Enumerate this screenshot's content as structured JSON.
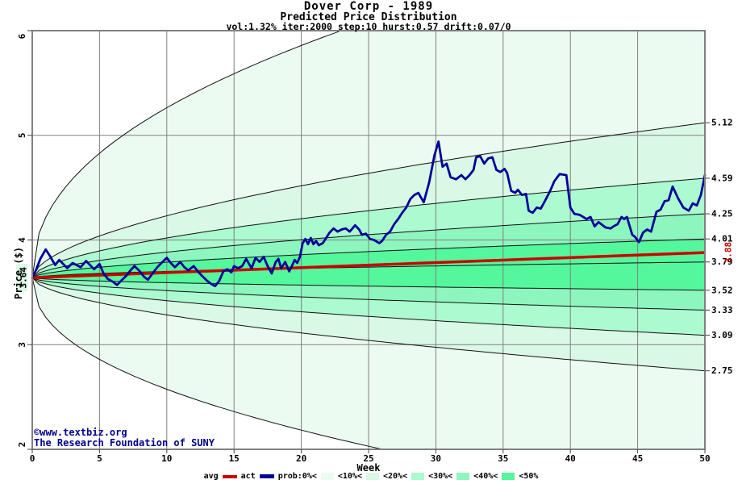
{
  "header": {
    "title": "Dover Corp - 1989",
    "subtitle": "Predicted Price Distribution",
    "params": "vol:1.32% iter:2000 step:10 hurst:0.57 drift:0.07/0"
  },
  "axes": {
    "x": {
      "label": "Week",
      "ticks": [
        0,
        5,
        10,
        15,
        20,
        25,
        30,
        35,
        40,
        45,
        50
      ],
      "min": 0,
      "max": 50
    },
    "y": {
      "label": "Price ($)",
      "ticks": [
        2,
        3,
        4,
        5,
        6
      ],
      "min": 2,
      "max": 6,
      "start_label": "3.64"
    },
    "y_right": {
      "labels": [
        "5.12",
        "4.59",
        "4.25",
        "4.01",
        "3.79",
        "3.52",
        "3.33",
        "3.09",
        "2.75"
      ],
      "avg_label": "3.88"
    }
  },
  "footer": {
    "copyright": "©www.textbiz.org",
    "org": "The Research Foundation of SUNY"
  },
  "legend": {
    "avg_label": "avg",
    "act_label": "act",
    "band_labels": [
      "prob:0%<",
      "<10%<",
      "<20%<",
      "<30%<",
      "<40%<",
      "<50%"
    ]
  },
  "colors": {
    "band_0_10": "#ecfbf1",
    "band_10_20": "#d9f8e5",
    "band_20_30": "#abfad0",
    "band_30_40": "#8df6bf",
    "band_40_50": "#55f79c",
    "avg_line": "#cc0000",
    "act_line": "#000099",
    "grid": "#808080",
    "border": "#808080",
    "boundary": "#111111",
    "footer_text": "#00008b",
    "start_label_bg": "#d9f8e5"
  },
  "chart_data": {
    "type": "area",
    "title": "Dover Corp - 1989",
    "subtitle": "Predicted Price Distribution",
    "annotation": "vol:1.32% iter:2000 step:10 hurst:0.57 drift:0.07/0",
    "xlabel": "Week",
    "ylabel": "Price ($)",
    "xlim": [
      0,
      50
    ],
    "ylim": [
      2,
      6
    ],
    "grid": true,
    "start_week": 0,
    "start_price": 3.64,
    "avg": {
      "shape": "linear",
      "start": 3.64,
      "end": 3.88,
      "label": "3.88"
    },
    "boundaries": [
      {
        "name": "upper-0pct-max",
        "delta": 3.35,
        "exp": 0.45,
        "end_label": ""
      },
      {
        "name": "upper-10pct",
        "delta": 1.48,
        "exp": 0.57,
        "end_label": "5.12"
      },
      {
        "name": "upper-20pct",
        "delta": 0.95,
        "exp": 0.57,
        "end_label": "4.59"
      },
      {
        "name": "upper-30pct",
        "delta": 0.61,
        "exp": 0.57,
        "end_label": "4.25"
      },
      {
        "name": "upper-40pct",
        "delta": 0.37,
        "exp": 0.57,
        "end_label": "4.01"
      },
      {
        "name": "median-50pct",
        "delta": 0.15,
        "exp": 0.57,
        "end_label": "3.79"
      },
      {
        "name": "lower-40pct",
        "delta": -0.12,
        "exp": 0.57,
        "end_label": "3.52"
      },
      {
        "name": "lower-30pct",
        "delta": -0.31,
        "exp": 0.57,
        "end_label": "3.33"
      },
      {
        "name": "lower-20pct",
        "delta": -0.55,
        "exp": 0.57,
        "end_label": "3.09"
      },
      {
        "name": "lower-10pct",
        "delta": -0.89,
        "exp": 0.57,
        "end_label": "2.75"
      },
      {
        "name": "lower-0pct-min",
        "delta": -2.2,
        "exp": 0.45,
        "end_label": ""
      }
    ],
    "bands": [
      {
        "between": [
          0,
          1
        ],
        "color_key": "band_0_10"
      },
      {
        "between": [
          1,
          2
        ],
        "color_key": "band_10_20"
      },
      {
        "between": [
          2,
          3
        ],
        "color_key": "band_20_30"
      },
      {
        "between": [
          3,
          4
        ],
        "color_key": "band_30_40"
      },
      {
        "between": [
          4,
          6
        ],
        "color_key": "band_40_50"
      },
      {
        "between": [
          6,
          7
        ],
        "color_key": "band_30_40"
      },
      {
        "between": [
          7,
          8
        ],
        "color_key": "band_20_30"
      },
      {
        "between": [
          8,
          9
        ],
        "color_key": "band_10_20"
      },
      {
        "between": [
          9,
          10
        ],
        "color_key": "band_0_10"
      }
    ],
    "act": {
      "x": [
        0,
        0.3,
        0.6,
        1.0,
        1.3,
        1.7,
        2.0,
        2.3,
        2.6,
        3.0,
        3.3,
        3.6,
        4.0,
        4.3,
        4.6,
        5.0,
        5.3,
        5.6,
        6.0,
        6.3,
        6.6,
        7.0,
        7.3,
        7.6,
        8.0,
        8.3,
        8.6,
        9.0,
        9.3,
        9.6,
        10.0,
        10.3,
        10.6,
        11.0,
        11.3,
        11.6,
        12.0,
        12.3,
        12.6,
        13.0,
        13.3,
        13.6,
        13.9,
        14.2,
        14.5,
        14.8,
        15.0,
        15.3,
        15.6,
        15.9,
        16.3,
        16.6,
        16.9,
        17.2,
        17.5,
        17.8,
        18.1,
        18.3,
        18.5,
        18.8,
        19.1,
        19.3,
        19.5,
        19.7,
        19.9,
        20.1,
        20.3,
        20.5,
        20.7,
        20.9,
        21.1,
        21.3,
        21.6,
        21.8,
        22.1,
        22.4,
        22.7,
        23.0,
        23.3,
        23.6,
        24.0,
        24.3,
        24.5,
        24.8,
        25.1,
        25.4,
        25.8,
        26.0,
        26.3,
        26.6,
        26.9,
        27.2,
        27.5,
        27.8,
        28.1,
        28.4,
        28.7,
        29.1,
        29.5,
        29.9,
        30.2,
        30.5,
        30.8,
        31.1,
        31.5,
        31.9,
        32.2,
        32.5,
        32.8,
        33.0,
        33.3,
        33.6,
        33.9,
        34.2,
        34.5,
        34.8,
        35.1,
        35.3,
        35.6,
        35.9,
        36.1,
        36.4,
        36.7,
        36.9,
        37.2,
        37.5,
        37.8,
        38.1,
        38.5,
        38.8,
        39.2,
        39.7,
        40.0,
        40.3,
        40.7,
        41.2,
        41.5,
        41.8,
        42.1,
        42.3,
        42.6,
        43.0,
        43.2,
        43.5,
        43.8,
        44.0,
        44.2,
        44.6,
        44.8,
        45.1,
        45.4,
        45.7,
        46.0,
        46.4,
        46.7,
        47.0,
        47.3,
        47.6,
        48.0,
        48.4,
        48.8,
        49.1,
        49.4,
        49.7,
        50.0
      ],
      "y": [
        3.64,
        3.72,
        3.82,
        3.91,
        3.85,
        3.76,
        3.81,
        3.77,
        3.73,
        3.78,
        3.76,
        3.74,
        3.8,
        3.76,
        3.72,
        3.77,
        3.68,
        3.63,
        3.6,
        3.57,
        3.61,
        3.66,
        3.71,
        3.75,
        3.7,
        3.65,
        3.62,
        3.69,
        3.74,
        3.78,
        3.83,
        3.78,
        3.74,
        3.79,
        3.74,
        3.71,
        3.75,
        3.7,
        3.66,
        3.61,
        3.58,
        3.56,
        3.61,
        3.7,
        3.72,
        3.69,
        3.75,
        3.73,
        3.75,
        3.82,
        3.73,
        3.83,
        3.79,
        3.84,
        3.75,
        3.68,
        3.79,
        3.82,
        3.73,
        3.79,
        3.7,
        3.75,
        3.81,
        3.78,
        3.84,
        3.97,
        4.01,
        3.96,
        4.02,
        3.96,
        3.99,
        3.95,
        3.97,
        4.01,
        4.07,
        4.11,
        4.08,
        4.1,
        4.11,
        4.08,
        4.14,
        4.1,
        4.05,
        4.06,
        4.01,
        4.0,
        3.97,
        3.99,
        4.05,
        4.08,
        4.15,
        4.2,
        4.26,
        4.31,
        4.39,
        4.43,
        4.45,
        4.36,
        4.55,
        4.81,
        4.94,
        4.7,
        4.73,
        4.6,
        4.58,
        4.62,
        4.58,
        4.62,
        4.67,
        4.79,
        4.8,
        4.73,
        4.78,
        4.79,
        4.67,
        4.65,
        4.68,
        4.64,
        4.47,
        4.45,
        4.48,
        4.43,
        4.44,
        4.28,
        4.26,
        4.31,
        4.3,
        4.37,
        4.47,
        4.56,
        4.63,
        4.62,
        4.31,
        4.25,
        4.24,
        4.2,
        4.22,
        4.13,
        4.17,
        4.15,
        4.12,
        4.11,
        4.13,
        4.15,
        4.22,
        4.2,
        4.22,
        4.05,
        4.03,
        3.98,
        4.07,
        4.1,
        4.08,
        4.27,
        4.29,
        4.37,
        4.38,
        4.51,
        4.4,
        4.31,
        4.28,
        4.35,
        4.33,
        4.43,
        4.62
      ]
    }
  }
}
